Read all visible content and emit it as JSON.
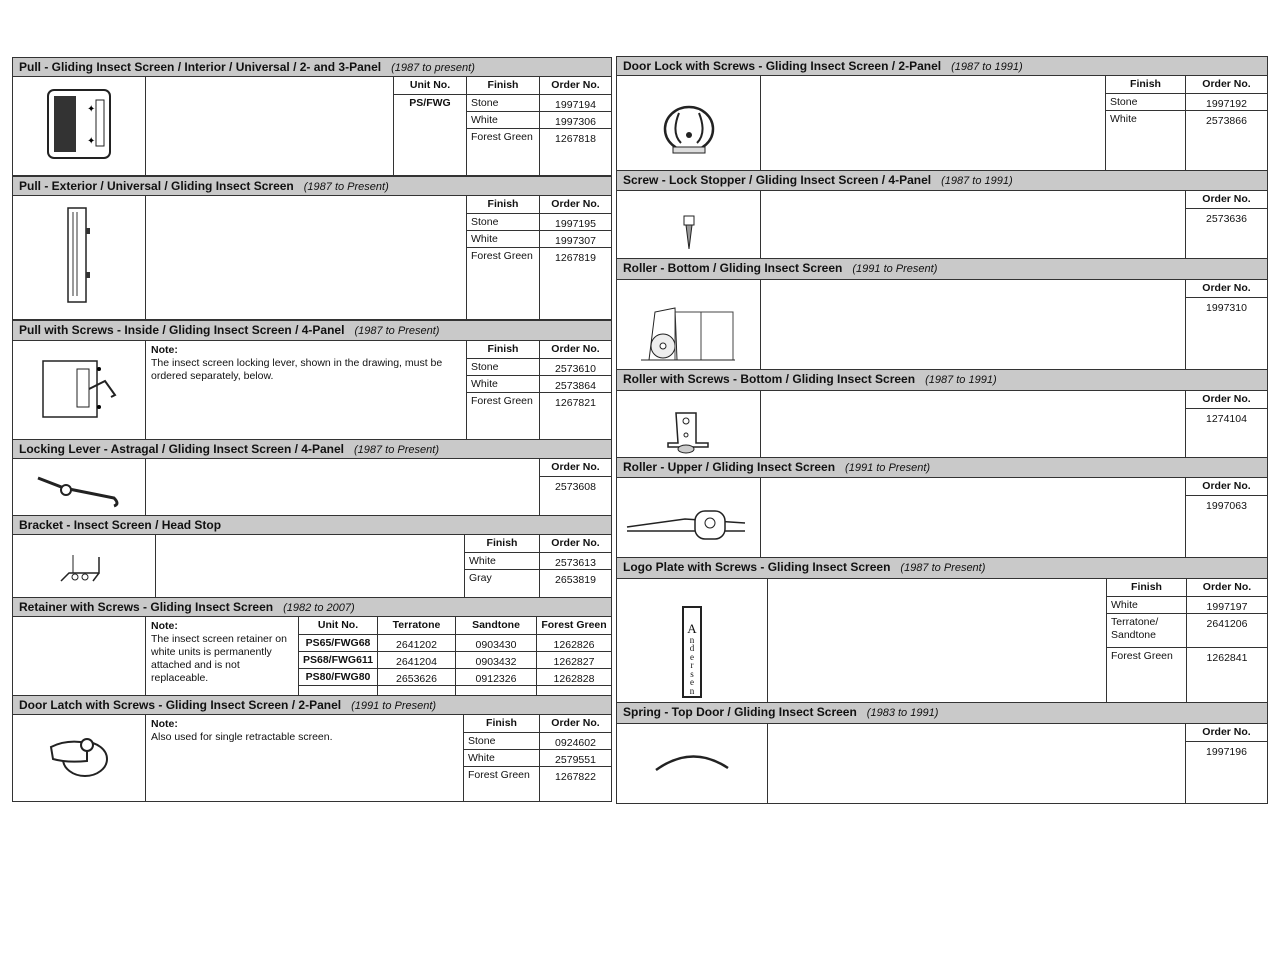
{
  "sections": [
    {
      "title": "Pull - Gliding Insect Screen / Interior / Universal / 2- and 3-Panel",
      "years": "(1987 to present)",
      "icon": "pull-interior-icon",
      "columns": [
        "Unit No.",
        "Finish",
        "Order No."
      ],
      "rows": [
        [
          "PS/FWG",
          "Stone",
          "1997194"
        ],
        [
          "",
          "White",
          "1997306"
        ],
        [
          "",
          "Forest Green",
          "1267818"
        ]
      ]
    },
    {
      "title": "Pull - Exterior / Universal / Gliding Insect Screen",
      "years": "(1987 to Present)",
      "icon": "pull-exterior-icon",
      "columns": [
        "Finish",
        "Order No."
      ],
      "rows": [
        [
          "Stone",
          "1997195"
        ],
        [
          "White",
          "1997307"
        ],
        [
          "Forest Green",
          "1267819"
        ]
      ]
    },
    {
      "title": "Pull with Screws - Inside / Gliding Insect Screen / 4-Panel",
      "years": "(1987 to Present)",
      "icon": "pull-with-screws-icon",
      "note_label": "Note:",
      "note_text": "The insect screen locking lever, shown in the drawing, must be ordered separately, below.",
      "columns": [
        "Finish",
        "Order No."
      ],
      "rows": [
        [
          "Stone",
          "2573610"
        ],
        [
          "White",
          "2573864"
        ],
        [
          "Forest Green",
          "1267821"
        ]
      ]
    },
    {
      "title": "Locking Lever - Astragal / Gliding Insect Screen / 4-Panel",
      "years": "(1987 to Present)",
      "icon": "locking-lever-icon",
      "columns": [
        "Order No."
      ],
      "rows": [
        [
          "2573608"
        ]
      ]
    },
    {
      "title": "Bracket - Insect Screen / Head Stop",
      "years": "",
      "icon": "bracket-icon",
      "columns": [
        "Finish",
        "Order No."
      ],
      "rows": [
        [
          "White",
          "2573613"
        ],
        [
          "Gray",
          "2653819"
        ]
      ]
    },
    {
      "title": "Retainer with Screws - Gliding Insect Screen",
      "years": "(1982 to 2007)",
      "icon": "",
      "note_label": "Note:",
      "note_text": "The insect screen retainer on white units is permanently attached and is not replaceable.",
      "columns": [
        "Unit No.",
        "Terratone",
        "Sandtone",
        "Forest Green"
      ],
      "rows": [
        [
          "PS65/FWG68",
          "2641202",
          "0903430",
          "1262826"
        ],
        [
          "PS68/FWG611",
          "2641204",
          "0903432",
          "1262827"
        ],
        [
          "PS80/FWG80",
          "2653626",
          "0912326",
          "1262828"
        ]
      ]
    },
    {
      "title": "Door Latch with Screws - Gliding Insect Screen / 2-Panel",
      "years": "(1991 to Present)",
      "icon": "door-latch-icon",
      "note_label": "Note:",
      "note_text": "Also used for single retractable screen.",
      "columns": [
        "Finish",
        "Order No."
      ],
      "rows": [
        [
          "Stone",
          "0924602"
        ],
        [
          "White",
          "2579551"
        ],
        [
          "Forest Green",
          "1267822"
        ]
      ]
    },
    {
      "title": "Door Lock with Screws - Gliding Insect Screen / 2-Panel",
      "years": "(1987 to 1991)",
      "icon": "door-lock-icon",
      "columns": [
        "Finish",
        "Order No."
      ],
      "rows": [
        [
          "Stone",
          "1997192"
        ],
        [
          "White",
          "2573866"
        ]
      ]
    },
    {
      "title": "Screw - Lock Stopper / Gliding Insect Screen / 4-Panel",
      "years": "(1987 to 1991)",
      "icon": "screw-icon",
      "columns": [
        "Order No."
      ],
      "rows": [
        [
          "2573636"
        ]
      ]
    },
    {
      "title": "Roller - Bottom / Gliding Insect Screen",
      "years": "(1991 to Present)",
      "icon": "roller-bottom-icon",
      "columns": [
        "Order No."
      ],
      "rows": [
        [
          "1997310"
        ]
      ]
    },
    {
      "title": "Roller with Screws - Bottom / Gliding Insect Screen",
      "years": "(1987 to 1991)",
      "icon": "roller-with-screws-icon",
      "columns": [
        "Order No."
      ],
      "rows": [
        [
          "1274104"
        ]
      ]
    },
    {
      "title": "Roller -  Upper / Gliding Insect Screen",
      "years": "(1991 to Present)",
      "icon": "roller-upper-icon",
      "columns": [
        "Order No."
      ],
      "rows": [
        [
          "1997063"
        ]
      ]
    },
    {
      "title": "Logo Plate with Screws - Gliding Insect Screen",
      "years": "(1987 to Present)",
      "icon": "logo-plate-icon",
      "logo_text": "Andersen",
      "columns": [
        "Finish",
        "Order No."
      ],
      "rows": [
        [
          "White",
          "1997197"
        ],
        [
          "Terratone/\nSandtone",
          "2641206"
        ],
        [
          "Forest Green",
          "1262841"
        ]
      ]
    },
    {
      "title": "Spring - Top Door / Gliding Insect Screen",
      "years": "(1983 to 1991)",
      "icon": "spring-icon",
      "columns": [
        "Order No."
      ],
      "rows": [
        [
          "1997196"
        ]
      ]
    }
  ]
}
